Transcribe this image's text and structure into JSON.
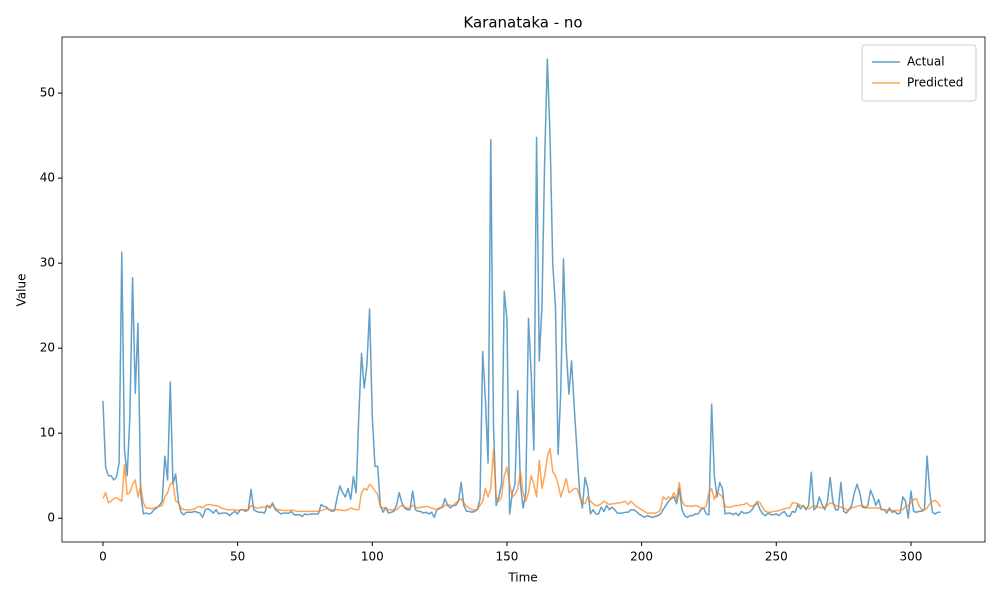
{
  "chart_data": {
    "type": "line",
    "title": "Karanataka - no",
    "x_label": "Time",
    "y_label": "Value",
    "x": [
      0,
      1,
      2,
      3,
      4,
      5,
      6,
      7,
      8,
      9,
      10,
      11,
      12,
      13,
      14,
      15,
      16,
      17,
      18,
      19,
      20,
      21,
      22,
      23,
      24,
      25,
      26,
      27,
      28,
      29,
      30,
      31,
      32,
      33,
      34,
      35,
      36,
      37,
      38,
      39,
      40,
      41,
      42,
      43,
      44,
      45,
      46,
      47,
      48,
      49,
      50,
      51,
      52,
      53,
      54,
      55,
      56,
      57,
      58,
      59,
      60,
      61,
      62,
      63,
      64,
      65,
      66,
      67,
      68,
      69,
      70,
      71,
      72,
      73,
      74,
      75,
      76,
      77,
      78,
      79,
      80,
      81,
      82,
      83,
      84,
      85,
      86,
      87,
      88,
      89,
      90,
      91,
      92,
      93,
      94,
      95,
      96,
      97,
      98,
      99,
      100,
      101,
      102,
      103,
      104,
      105,
      106,
      107,
      108,
      109,
      110,
      111,
      112,
      113,
      114,
      115,
      116,
      117,
      118,
      119,
      120,
      121,
      122,
      123,
      124,
      125,
      126,
      127,
      128,
      129,
      130,
      131,
      132,
      133,
      134,
      135,
      136,
      137,
      138,
      139,
      140,
      141,
      142,
      143,
      144,
      145,
      146,
      147,
      148,
      149,
      150,
      151,
      152,
      153,
      154,
      155,
      156,
      157,
      158,
      159,
      160,
      161,
      162,
      163,
      164,
      165,
      166,
      167,
      168,
      169,
      170,
      171,
      172,
      173,
      174,
      175,
      176,
      177,
      178,
      179,
      180,
      181,
      182,
      183,
      184,
      185,
      186,
      187,
      188,
      189,
      190,
      191,
      192,
      193,
      194,
      195,
      196,
      197,
      198,
      199,
      200,
      201,
      202,
      203,
      204,
      205,
      206,
      207,
      208,
      209,
      210,
      211,
      212,
      213,
      214,
      215,
      216,
      217,
      218,
      219,
      220,
      221,
      222,
      223,
      224,
      225,
      226,
      227,
      228,
      229,
      230,
      231,
      232,
      233,
      234,
      235,
      236,
      237,
      238,
      239,
      240,
      241,
      242,
      243,
      244,
      245,
      246,
      247,
      248,
      249,
      250,
      251,
      252,
      253,
      254,
      255,
      256,
      257,
      258,
      259,
      260,
      261,
      262,
      263,
      264,
      265,
      266,
      267,
      268,
      269,
      270,
      271,
      272,
      273,
      274,
      275,
      276,
      277,
      278,
      279,
      280,
      281,
      282,
      283,
      284,
      285,
      286,
      287,
      288,
      289,
      290,
      291,
      292,
      293,
      294,
      295,
      296,
      297,
      298,
      299,
      300,
      301,
      302,
      303,
      304,
      305,
      306,
      307,
      308,
      309,
      310,
      311
    ],
    "series": [
      {
        "name": "Actual",
        "color": "#1f77b4",
        "values": [
          13.8,
          6,
          5,
          5,
          4.5,
          4.8,
          6.5,
          31.3,
          8,
          5,
          12,
          28.3,
          14.7,
          22.9,
          3,
          0.5,
          0.6,
          0.5,
          0.6,
          1,
          1.2,
          1.5,
          2,
          7.3,
          4.5,
          16,
          4,
          5.2,
          2,
          0.7,
          0.4,
          0.7,
          0.7,
          0.7,
          0.8,
          0.7,
          0.6,
          0.1,
          1,
          1.1,
          0.9,
          0.6,
          1,
          0.5,
          0.6,
          0.6,
          0.6,
          0.3,
          0.6,
          0.8,
          0.5,
          1,
          1,
          0.8,
          1,
          3.4,
          1,
          0.8,
          0.7,
          0.7,
          0.6,
          1.5,
          1.2,
          1.8,
          1,
          0.8,
          0.5,
          0.6,
          0.6,
          0.6,
          0.8,
          0.4,
          0.4,
          0.4,
          0.2,
          0.5,
          0.4,
          0.5,
          0.5,
          0.5,
          0.5,
          1.6,
          1.4,
          1.3,
          1,
          0.8,
          0.9,
          2.5,
          3.8,
          3,
          2.5,
          3.5,
          2.2,
          4.9,
          3,
          12,
          19.4,
          15.3,
          18,
          24.6,
          12,
          6.1,
          6.1,
          1.5,
          0.7,
          1.3,
          0.6,
          0.7,
          0.8,
          1.5,
          3,
          1.8,
          1.2,
          1,
          1,
          3.2,
          1,
          0.8,
          0.8,
          0.6,
          0.7,
          0.5,
          0.7,
          0.1,
          1,
          1.2,
          1.3,
          2.3,
          1.5,
          1.2,
          1.5,
          1.5,
          2,
          4.2,
          1.5,
          0.8,
          0.8,
          0.7,
          0.8,
          1,
          2.2,
          19.6,
          14,
          6.5,
          44.5,
          11,
          1.5,
          2.5,
          4,
          26.7,
          23.4,
          0.5,
          3,
          4,
          15,
          4,
          1.2,
          3,
          23.5,
          17,
          8,
          44.8,
          18.5,
          25,
          42,
          54,
          45,
          30,
          25,
          7.5,
          15,
          30.5,
          20,
          14.6,
          18.5,
          13,
          8,
          3,
          1.2,
          4.8,
          3.5,
          0.5,
          1,
          0.5,
          0.5,
          1.3,
          0.8,
          1.5,
          1,
          1.3,
          1,
          0.6,
          0.6,
          0.6,
          0.7,
          0.7,
          1,
          1,
          0.8,
          0.5,
          0.3,
          0.1,
          0.3,
          0.2,
          0.1,
          0.2,
          0.3,
          0.5,
          1,
          1.5,
          2,
          2.3,
          2.5,
          1.7,
          3.5,
          1,
          0.3,
          0.1,
          0.3,
          0.3,
          0.5,
          0.5,
          1,
          1.2,
          0.5,
          0.4,
          13.4,
          5,
          2.5,
          4.2,
          3.5,
          0.5,
          0.6,
          0.6,
          0.4,
          0.6,
          0.3,
          0.8,
          0.6,
          0.6,
          0.7,
          1,
          1.5,
          1.8,
          1,
          0.5,
          0.3,
          0.6,
          0.4,
          0.4,
          0.5,
          0.3,
          0.6,
          0.8,
          0.3,
          0.2,
          0.8,
          0.7,
          1.6,
          1.1,
          1.5,
          1,
          1.5,
          5.4,
          1,
          1.3,
          2.5,
          1.6,
          1,
          2,
          4.8,
          2,
          1,
          1,
          4.2,
          0.8,
          0.6,
          1,
          1.5,
          3,
          4,
          3,
          1.3,
          1.2,
          1.5,
          3.3,
          2.5,
          1.5,
          2.2,
          1,
          1,
          0.6,
          1.2,
          0.7,
          0.8,
          0.5,
          0.6,
          2.5,
          2,
          0,
          3.2,
          0.8,
          0.7,
          0.8,
          0.8,
          1,
          7.3,
          3,
          0.7,
          0.5,
          0.7,
          0.7
        ]
      },
      {
        "name": "Predicted",
        "color": "#ff7f0e",
        "values": [
          2.3,
          3,
          1.8,
          2,
          2.3,
          2.4,
          2.2,
          2,
          6.3,
          2.8,
          3,
          4,
          4.5,
          2.5,
          3.8,
          1.8,
          1.2,
          1.2,
          1.1,
          1.2,
          1.3,
          1.4,
          1.5,
          2.5,
          3,
          4,
          4.2,
          2,
          1.8,
          1.2,
          1,
          1,
          1,
          1,
          1.1,
          1.3,
          1.4,
          1.2,
          1.5,
          1.6,
          1.6,
          1.5,
          1.5,
          1.4,
          1.2,
          1.1,
          1,
          1,
          1,
          1,
          0.9,
          1,
          1,
          1,
          1,
          1.5,
          1.3,
          1.2,
          1.2,
          1.3,
          1.3,
          1.4,
          1.4,
          1.5,
          1.2,
          1,
          1,
          0.9,
          0.9,
          0.9,
          1,
          0.9,
          0.8,
          0.8,
          0.8,
          0.8,
          0.8,
          0.8,
          0.8,
          0.8,
          0.8,
          0.9,
          1,
          1.1,
          1,
          1,
          1,
          1,
          1,
          0.9,
          0.9,
          1,
          1.2,
          1.1,
          1,
          1,
          3,
          3.5,
          3.3,
          4,
          3.7,
          3.2,
          2.8,
          1.3,
          1.2,
          1.2,
          1,
          1,
          1,
          1,
          1.3,
          1.5,
          1.3,
          1.2,
          1.2,
          1.5,
          1.3,
          1.2,
          1.3,
          1.3,
          1.4,
          1.3,
          1.2,
          1.1,
          1,
          1.1,
          1.3,
          1.5,
          1.6,
          1.5,
          1.5,
          1.8,
          2,
          2.3,
          1.8,
          1.4,
          1.2,
          1,
          1,
          1,
          1.5,
          2,
          3.5,
          2.5,
          3.5,
          8,
          2.5,
          2,
          2.5,
          5,
          6,
          4,
          2.5,
          2.8,
          3.5,
          5.5,
          3,
          2,
          3,
          5,
          4,
          2.5,
          6.8,
          3.5,
          5,
          7.2,
          8.2,
          5.5,
          5,
          4,
          2.5,
          3.5,
          4.7,
          3,
          3.2,
          3.5,
          3.5,
          2.5,
          1.8,
          1.7,
          2.5,
          2,
          1.7,
          1.5,
          1.5,
          1.7,
          2,
          1.8,
          1.6,
          1.7,
          1.7,
          1.8,
          1.8,
          1.9,
          2,
          1.6,
          2,
          1.7,
          1.4,
          1.2,
          1,
          0.8,
          0.6,
          0.6,
          0.6,
          0.6,
          0.7,
          1,
          2.5,
          2.2,
          2.5,
          2.3,
          3,
          2.2,
          4.2,
          2,
          1.5,
          1.4,
          1.4,
          1.4,
          1.5,
          1.4,
          1.2,
          1.2,
          1.4,
          3,
          3.5,
          2.2,
          3,
          2.8,
          2.5,
          1.4,
          1.3,
          1.3,
          1.4,
          1.5,
          1.5,
          1.6,
          1.6,
          1.8,
          1.5,
          1.4,
          1.6,
          2,
          1.8,
          1.2,
          0.8,
          0.7,
          0.7,
          0.8,
          0.8,
          0.9,
          1,
          1.1,
          1.2,
          1.2,
          1.8,
          1.8,
          1.7,
          1.5,
          1.4,
          1.2,
          1.1,
          1.3,
          1.5,
          1.4,
          1.3,
          1.2,
          1.3,
          1.5,
          1.8,
          1.7,
          1.5,
          1.4,
          1.3,
          1.2,
          1,
          1,
          1.2,
          1.3,
          1.4,
          1.5,
          1.5,
          1.3,
          1.2,
          1.2,
          1.2,
          1.2,
          1.2,
          1.1,
          1,
          1,
          0.9,
          0.9,
          0.9,
          0.9,
          0.9,
          1,
          1.4,
          1.5,
          1.8,
          2.2,
          2.3,
          1.5,
          1,
          1,
          1.2,
          1.7,
          2,
          2.1,
          1.8,
          1.3
        ]
      }
    ],
    "xlim": [
      -15.2,
      327.5
    ],
    "xticks": [
      0,
      50,
      100,
      150,
      200,
      250,
      300
    ],
    "ylim": [
      -2.8,
      56.6
    ],
    "yticks": [
      0,
      10,
      20,
      30,
      40,
      50
    ],
    "line_opacity": 0.7,
    "legend": "upper right"
  }
}
